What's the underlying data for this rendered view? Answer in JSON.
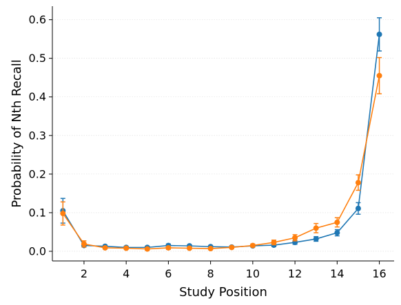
{
  "chart_data": {
    "type": "line",
    "title": "",
    "xlabel": "Study Position",
    "ylabel": "Probability of Nth Recall",
    "xlim": [
      0.5,
      16.7
    ],
    "ylim": [
      -0.025,
      0.635
    ],
    "xticks": [
      2,
      4,
      6,
      8,
      10,
      12,
      14,
      16
    ],
    "yticks": [
      0.0,
      0.1,
      0.2,
      0.3,
      0.4,
      0.5,
      0.6
    ],
    "ytick_labels": [
      "0.0",
      "0.1",
      "0.2",
      "0.3",
      "0.4",
      "0.5",
      "0.6"
    ],
    "grid": "horizontal, faint dotted",
    "legend": "none",
    "x": [
      1,
      2,
      3,
      4,
      5,
      6,
      7,
      8,
      9,
      10,
      11,
      12,
      13,
      14,
      15,
      16
    ],
    "series": [
      {
        "color": "#1f77b4",
        "values": [
          0.105,
          0.015,
          0.013,
          0.01,
          0.01,
          0.015,
          0.014,
          0.012,
          0.011,
          0.014,
          0.016,
          0.023,
          0.032,
          0.048,
          0.111,
          0.562
        ],
        "error": [
          0.032,
          0.004,
          0.003,
          0.003,
          0.003,
          0.004,
          0.003,
          0.003,
          0.003,
          0.003,
          0.004,
          0.005,
          0.006,
          0.008,
          0.015,
          0.043
        ]
      },
      {
        "color": "#ff7f0e",
        "values": [
          0.098,
          0.019,
          0.009,
          0.008,
          0.006,
          0.009,
          0.008,
          0.007,
          0.01,
          0.015,
          0.023,
          0.035,
          0.06,
          0.075,
          0.178,
          0.455
        ],
        "error": [
          0.03,
          0.008,
          0.003,
          0.003,
          0.003,
          0.004,
          0.003,
          0.003,
          0.003,
          0.004,
          0.006,
          0.008,
          0.012,
          0.012,
          0.02,
          0.047
        ]
      }
    ]
  }
}
